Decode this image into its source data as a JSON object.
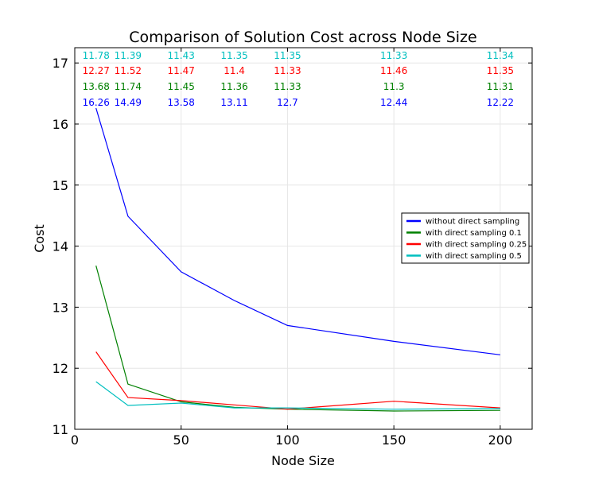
{
  "chart_data": {
    "type": "line",
    "title": "Comparison of Solution Cost across Node Size",
    "xlabel": "Node Size",
    "ylabel": "Cost",
    "xlim": [
      0,
      215
    ],
    "ylim": [
      11,
      17.25
    ],
    "xticks": [
      0,
      50,
      100,
      150,
      200
    ],
    "yticks": [
      11,
      12,
      13,
      14,
      15,
      16,
      17
    ],
    "grid": true,
    "legend_position": "center-right",
    "x": [
      10,
      25,
      50,
      75,
      100,
      150,
      200
    ],
    "series": [
      {
        "name": "without direct sampling",
        "color": "#0000ff",
        "values": [
          16.26,
          14.49,
          13.58,
          13.11,
          12.7,
          12.44,
          12.22
        ],
        "labels": [
          "16.26",
          "14.49",
          "13.58",
          "13.11",
          "12.7",
          "12.44",
          "12.22"
        ]
      },
      {
        "name": "with direct sampling 0.1",
        "color": "#008000",
        "values": [
          13.68,
          11.74,
          11.45,
          11.36,
          11.33,
          11.3,
          11.31
        ],
        "labels": [
          "13.68",
          "11.74",
          "11.45",
          "11.36",
          "11.33",
          "11.3",
          "11.31"
        ]
      },
      {
        "name": "with direct sampling 0.25",
        "color": "#ff0000",
        "values": [
          12.27,
          11.52,
          11.47,
          11.4,
          11.33,
          11.46,
          11.35
        ],
        "labels": [
          "12.27",
          "11.52",
          "11.47",
          "11.4",
          "11.33",
          "11.46",
          "11.35"
        ]
      },
      {
        "name": "with direct sampling 0.5",
        "color": "#00bfbf",
        "values": [
          11.78,
          11.39,
          11.43,
          11.35,
          11.35,
          11.33,
          11.34
        ],
        "labels": [
          "11.78",
          "11.39",
          "11.43",
          "11.35",
          "11.35",
          "11.33",
          "11.34"
        ]
      }
    ]
  }
}
